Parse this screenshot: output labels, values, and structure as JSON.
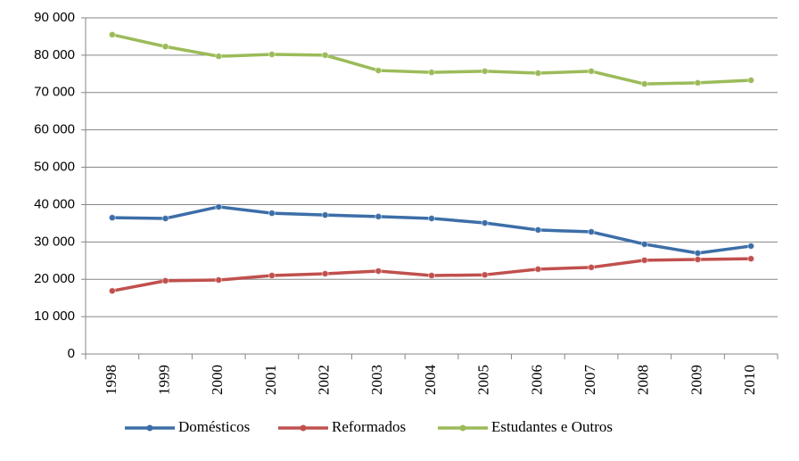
{
  "chart_data": {
    "type": "line",
    "categories": [
      "1998",
      "1999",
      "2000",
      "2001",
      "2002",
      "2003",
      "2004",
      "2005",
      "2006",
      "2007",
      "2008",
      "2009",
      "2010"
    ],
    "series": [
      {
        "name": "Domésticos",
        "color": "#3c6ea8",
        "values": [
          36500,
          36300,
          39400,
          37700,
          37200,
          36800,
          36300,
          35100,
          33200,
          32700,
          29400,
          27000,
          28900
        ]
      },
      {
        "name": "Reformados",
        "color": "#c0504d",
        "values": [
          16900,
          19600,
          19800,
          21000,
          21500,
          22200,
          21000,
          21200,
          22700,
          23200,
          25100,
          25300,
          25500
        ]
      },
      {
        "name": "Estudantes e Outros",
        "color": "#9bbb59",
        "values": [
          85500,
          82300,
          79700,
          80200,
          80000,
          75900,
          75400,
          75700,
          75200,
          75700,
          72300,
          72600,
          73300
        ]
      }
    ],
    "ylim": [
      0,
      90000
    ],
    "yticks": [
      0,
      {
        "value": 10000,
        "label": "10 000"
      },
      {
        "value": 20000,
        "label": "20 000"
      },
      {
        "value": 30000,
        "label": "30 000"
      },
      {
        "value": 40000,
        "label": "40 000"
      },
      {
        "value": 50000,
        "label": "50 000"
      },
      {
        "value": 60000,
        "label": "60 000"
      },
      {
        "value": 70000,
        "label": "70 000"
      },
      {
        "value": 80000,
        "label": "80 000"
      },
      {
        "value": 90000,
        "label": "90 000"
      }
    ],
    "grid": true,
    "legend": "bottom"
  }
}
